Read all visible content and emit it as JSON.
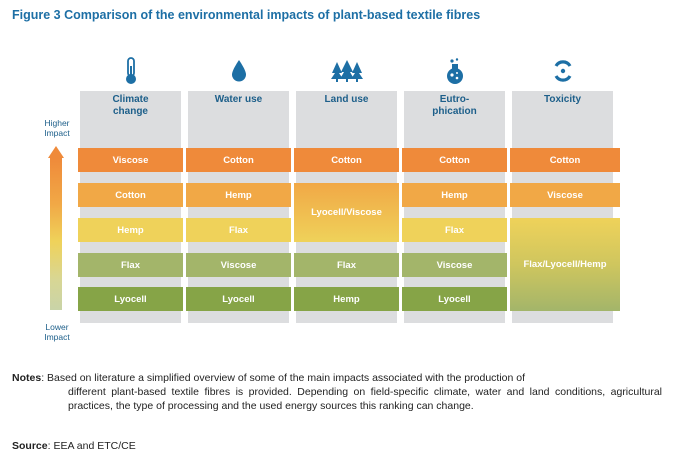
{
  "title": "Figure 3 Comparison of the environmental impacts of plant-based textile fibres",
  "axis": {
    "higher": "Higher\nImpact",
    "lower": "Lower\nImpact"
  },
  "columns": [
    {
      "header": "Climate\nchange",
      "icon": "thermometer-icon"
    },
    {
      "header": "Water use",
      "icon": "water-drop-icon"
    },
    {
      "header": "Land use",
      "icon": "trees-icon"
    },
    {
      "header": "Eutro-\nphication",
      "icon": "flask-icon"
    },
    {
      "header": "Toxicity",
      "icon": "toxicity-icon"
    }
  ],
  "cells": {
    "climate": [
      "Viscose",
      "Cotton",
      "Hemp",
      "Flax",
      "Lyocell"
    ],
    "water": [
      "Cotton",
      "Hemp",
      "Flax",
      "Viscose",
      "Lyocell"
    ],
    "land": [
      "Cotton",
      "Lyocell/Viscose",
      "Flax",
      "Hemp"
    ],
    "eutro": [
      "Cotton",
      "Hemp",
      "Flax",
      "Viscose",
      "Lyocell"
    ],
    "toxicity": [
      "Cotton",
      "Viscose",
      "Flax/Lyocell/Hemp"
    ]
  },
  "colors": {
    "rank1": "#ef8a3a",
    "rank2": "#f1a846",
    "rank3": "#efd25a",
    "rank4": "#a3b56a",
    "rank5": "#86a447",
    "column_bg": "#dcdddf",
    "title": "#1d6fa5"
  },
  "notes": {
    "label": "Notes",
    "text": ": Based on literature a simplified overview of some of the main impacts associated with the production of",
    "text_cont": "different plant-based textile fibres is provided. Depending on field-specific climate, water and land conditions, agricultural practices, the type of processing and the used energy sources this ranking can change."
  },
  "source": {
    "label": "Source",
    "text": ": EEA and ETC/CE"
  }
}
